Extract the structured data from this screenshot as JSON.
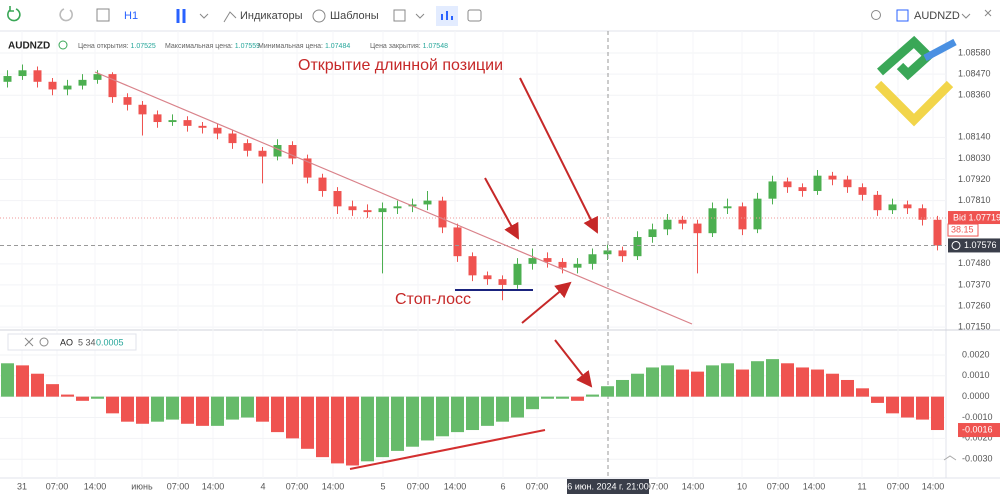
{
  "toolbar": {
    "interval": "H1",
    "indicators": "Индикаторы",
    "templates": "Шаблоны",
    "symbol": "AUDNZD"
  },
  "chart_data": [
    {
      "type": "candlestick",
      "symbol": "AUDNZD",
      "info": [
        {
          "label": "Цена открытия:",
          "value": "1.07525"
        },
        {
          "label": "Максимальная цена:",
          "value": "1.07559"
        },
        {
          "label": "Минимальная цена:",
          "value": "1.07484"
        },
        {
          "label": "Цена закрытия:",
          "value": "1.07548"
        }
      ],
      "open": [
        1.0843,
        1.0846,
        1.0849,
        1.0843,
        1.0839,
        1.0841,
        1.0844,
        1.0847,
        1.0835,
        1.0831,
        1.0826,
        1.0822,
        1.0823,
        1.082,
        1.0819,
        1.0816,
        1.0811,
        1.0807,
        1.0804,
        1.081,
        1.0803,
        1.0793,
        1.0786,
        1.0778,
        1.0776,
        1.0775,
        1.0777,
        1.0778,
        1.0779,
        1.0781,
        1.0767,
        1.0752,
        1.0742,
        1.074,
        1.0737,
        1.0748,
        1.0751,
        1.0749,
        1.0746,
        1.0748,
        1.0753,
        1.0755,
        1.0752,
        1.0762,
        1.0766,
        1.0771,
        1.0769,
        1.0764,
        1.0777,
        1.0778,
        1.0766,
        1.0782,
        1.0791,
        1.0788,
        1.0786,
        1.0794,
        1.0792,
        1.0788,
        1.0784,
        1.0776,
        1.0779,
        1.0777,
        1.0771
      ],
      "high": [
        1.0849,
        1.0852,
        1.0851,
        1.0845,
        1.0844,
        1.0847,
        1.0849,
        1.0848,
        1.0837,
        1.0833,
        1.0828,
        1.0826,
        1.0825,
        1.0822,
        1.0821,
        1.0818,
        1.0813,
        1.0809,
        1.0813,
        1.0812,
        1.0805,
        1.0795,
        1.0788,
        1.0781,
        1.0779,
        1.078,
        1.0781,
        1.0782,
        1.0786,
        1.0783,
        1.0769,
        1.0754,
        1.0744,
        1.0742,
        1.0751,
        1.0756,
        1.0754,
        1.0751,
        1.0751,
        1.0756,
        1.0758,
        1.0757,
        1.0765,
        1.0769,
        1.0774,
        1.0773,
        1.0771,
        1.078,
        1.0782,
        1.078,
        1.0785,
        1.0794,
        1.0793,
        1.079,
        1.0797,
        1.0796,
        1.0794,
        1.079,
        1.0786,
        1.0782,
        1.0781,
        1.0779,
        1.0773
      ],
      "low": [
        1.084,
        1.0844,
        1.084,
        1.0836,
        1.0836,
        1.0839,
        1.0842,
        1.0832,
        1.0828,
        1.0815,
        1.0819,
        1.082,
        1.0817,
        1.0816,
        1.0813,
        1.0808,
        1.0804,
        1.079,
        1.0802,
        1.08,
        1.079,
        1.0783,
        1.0774,
        1.0773,
        1.0772,
        1.0743,
        1.0774,
        1.0775,
        1.0776,
        1.0764,
        1.0749,
        1.0739,
        1.0737,
        1.0729,
        1.0735,
        1.0745,
        1.0746,
        1.0743,
        1.0743,
        1.0745,
        1.075,
        1.0749,
        1.075,
        1.0759,
        1.0763,
        1.0766,
        1.0743,
        1.0762,
        1.0774,
        1.0763,
        1.0764,
        1.0779,
        1.0785,
        1.0783,
        1.0784,
        1.0789,
        1.0785,
        1.0781,
        1.0773,
        1.0774,
        1.0774,
        1.0768,
        1.0755
      ],
      "close": [
        1.0846,
        1.0849,
        1.0843,
        1.0839,
        1.0841,
        1.0844,
        1.0847,
        1.0835,
        1.0831,
        1.0826,
        1.0822,
        1.0823,
        1.082,
        1.0819,
        1.0816,
        1.0811,
        1.0807,
        1.0804,
        1.081,
        1.0803,
        1.0793,
        1.0786,
        1.0778,
        1.0776,
        1.0775,
        1.0777,
        1.0778,
        1.0779,
        1.0781,
        1.0767,
        1.0752,
        1.0742,
        1.074,
        1.0737,
        1.0748,
        1.0751,
        1.0749,
        1.0746,
        1.0748,
        1.0753,
        1.0755,
        1.0752,
        1.0762,
        1.0766,
        1.0771,
        1.0769,
        1.0764,
        1.0777,
        1.0778,
        1.0766,
        1.0782,
        1.0791,
        1.0788,
        1.0786,
        1.0794,
        1.0792,
        1.0788,
        1.0784,
        1.0776,
        1.0779,
        1.0777,
        1.0771,
        1.07576
      ],
      "up_color": "#4caf50",
      "down_color": "#ef5350",
      "ylim": [
        1.0714,
        1.08695
      ],
      "yticks": [
        {
          "value": 1.0858,
          "label": "1.08580"
        },
        {
          "value": 1.0847,
          "label": "1.08470"
        },
        {
          "value": 1.0836,
          "label": "1.08360"
        },
        {
          "value": 1.0814,
          "label": "1.08140"
        },
        {
          "value": 1.0803,
          "label": "1.08030"
        },
        {
          "value": 1.0792,
          "label": "1.07920"
        },
        {
          "value": 1.0781,
          "label": "1.07810"
        },
        {
          "value": 1.0748,
          "label": "1.07480"
        },
        {
          "value": 1.0737,
          "label": "1.07370"
        },
        {
          "value": 1.0726,
          "label": "1.07260"
        },
        {
          "value": 1.0715,
          "label": "1.07150"
        }
      ],
      "bid": {
        "value": 1.07719,
        "label": "Bid 1.07719"
      },
      "countdown": "38.15",
      "last": 1.07576,
      "annotations": {
        "entry": "Открытие длинной позиции",
        "stop": "Стоп-лосс"
      },
      "time_labels": [
        "31",
        "07:00",
        "14:00",
        "июнь",
        "07:00",
        "14:00",
        "4",
        "07:00",
        "14:00",
        "5",
        "07:00",
        "14:00",
        "6",
        "07:00",
        "07:00",
        "14:00",
        "10",
        "07:00",
        "14:00",
        "11",
        "07:00",
        "14:00"
      ],
      "crosshair_label": "6 июн. 2024 г. 21:00"
    },
    {
      "type": "bar",
      "title": "AO",
      "params": "5 34",
      "current": "0.0005",
      "values": [
        0.0016,
        0.0015,
        0.0011,
        0.0006,
        0.0001,
        -0.0002,
        -0.0001,
        -0.0008,
        -0.0012,
        -0.0013,
        -0.0012,
        -0.0011,
        -0.0013,
        -0.0014,
        -0.0014,
        -0.0011,
        -0.001,
        -0.0012,
        -0.0017,
        -0.002,
        -0.0025,
        -0.0029,
        -0.0032,
        -0.0033,
        -0.0031,
        -0.0029,
        -0.0026,
        -0.0024,
        -0.0021,
        -0.0019,
        -0.0017,
        -0.0016,
        -0.0014,
        -0.0012,
        -0.001,
        -0.0006,
        -0.0001,
        -0.0001,
        -0.0002,
        0.0001,
        0.0005,
        0.0008,
        0.0011,
        0.0014,
        0.0015,
        0.0013,
        0.0012,
        0.0015,
        0.0016,
        0.0013,
        0.0017,
        0.0018,
        0.0016,
        0.0014,
        0.0013,
        0.0011,
        0.0008,
        0.0004,
        -0.0003,
        -0.0008,
        -0.001,
        -0.0011,
        -0.0016
      ],
      "up_color": "#66bb6a",
      "down_color": "#ef5350",
      "ylim": [
        -0.0039,
        0.0031
      ],
      "yticks": [
        {
          "value": 0.002,
          "label": "0.0020"
        },
        {
          "value": 0.001,
          "label": "0.0010"
        },
        {
          "value": 0,
          "label": "0.0000"
        },
        {
          "value": -0.001,
          "label": "-0.0010"
        },
        {
          "value": -0.002,
          "label": "-0.0020"
        },
        {
          "value": -0.003,
          "label": "-0.0030"
        }
      ],
      "last": {
        "value": -0.0016,
        "label": "-0.0016"
      }
    }
  ]
}
